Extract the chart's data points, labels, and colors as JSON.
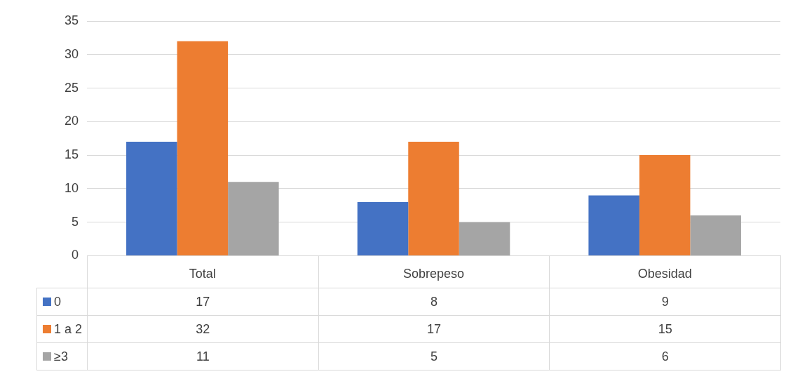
{
  "chart_data": {
    "type": "bar",
    "categories": [
      "Total",
      "Sobrepeso",
      "Obesidad"
    ],
    "series": [
      {
        "name": "0",
        "color": "#4472c4",
        "values": [
          17,
          8,
          9
        ]
      },
      {
        "name": "1 a 2",
        "color": "#ed7d31",
        "values": [
          32,
          17,
          15
        ]
      },
      {
        "name": "≥3",
        "color": "#a5a5a5",
        "values": [
          11,
          5,
          6
        ]
      }
    ],
    "ylim": [
      0,
      35
    ],
    "yticks": [
      0,
      5,
      10,
      15,
      20,
      25,
      30,
      35
    ],
    "grid": "y",
    "legend": "bottom",
    "data_labels": true
  }
}
